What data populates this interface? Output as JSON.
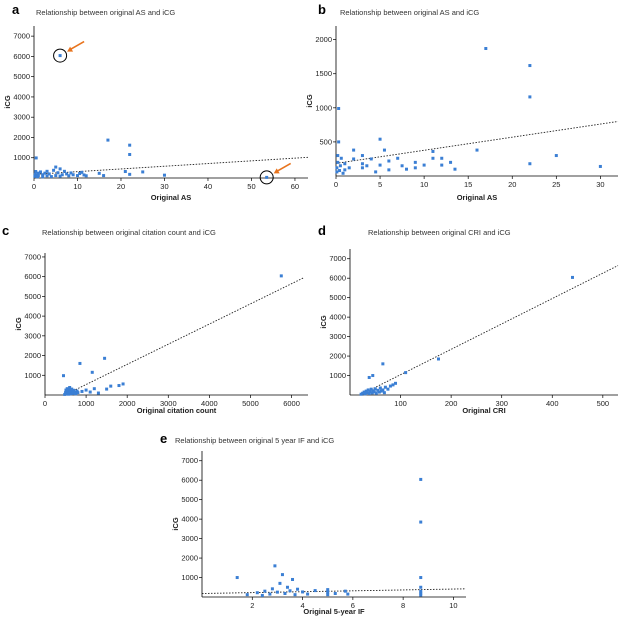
{
  "chart_data": [
    {
      "panel": "a",
      "type": "scatter",
      "title": "Relationship between original AS and iCG",
      "xlabel": "Original AS",
      "ylabel": "iCG",
      "xlim": [
        0,
        63
      ],
      "ylim": [
        0,
        7500
      ],
      "xticks": [
        0,
        10,
        20,
        30,
        40,
        50,
        60
      ],
      "yticks": [
        1000,
        2000,
        3000,
        4000,
        5000,
        6000,
        7000
      ],
      "trendline": [
        [
          0,
          180
        ],
        [
          63,
          1020
        ]
      ],
      "circled_points": [
        [
          6,
          6040
        ],
        [
          53.5,
          30
        ]
      ],
      "points": [
        [
          0.2,
          80
        ],
        [
          0.3,
          180
        ],
        [
          0.4,
          320
        ],
        [
          0.5,
          990
        ],
        [
          0.6,
          150
        ],
        [
          0.8,
          60
        ],
        [
          1,
          240
        ],
        [
          1,
          120
        ],
        [
          1.5,
          300
        ],
        [
          2,
          160
        ],
        [
          2,
          60
        ],
        [
          2.5,
          240
        ],
        [
          3,
          110
        ],
        [
          3,
          330
        ],
        [
          3.5,
          200
        ],
        [
          4,
          70
        ],
        [
          4.5,
          380
        ],
        [
          5,
          120
        ],
        [
          5,
          540
        ],
        [
          5.5,
          260
        ],
        [
          6,
          90
        ],
        [
          6,
          450
        ],
        [
          6,
          6040
        ],
        [
          6.5,
          160
        ],
        [
          7,
          330
        ],
        [
          7.5,
          200
        ],
        [
          8,
          110
        ],
        [
          8.5,
          250
        ],
        [
          9,
          160
        ],
        [
          10,
          120
        ],
        [
          10.5,
          220
        ],
        [
          11,
          280
        ],
        [
          11.5,
          150
        ],
        [
          12,
          110
        ],
        [
          15,
          230
        ],
        [
          16,
          120
        ],
        [
          17,
          1870
        ],
        [
          21,
          320
        ],
        [
          22,
          1620
        ],
        [
          22,
          1160
        ],
        [
          22,
          180
        ],
        [
          25,
          300
        ],
        [
          30,
          140
        ],
        [
          53.5,
          30
        ]
      ]
    },
    {
      "panel": "b",
      "type": "scatter",
      "title": "Relationship between original AS and iCG",
      "xlabel": "Original AS",
      "ylabel": "iCG",
      "xlim": [
        0,
        32
      ],
      "ylim": [
        0,
        2200
      ],
      "xticks": [
        0,
        5,
        10,
        15,
        20,
        25,
        30
      ],
      "yticks": [
        500,
        1000,
        1500,
        2000
      ],
      "trendline": [
        [
          0,
          185
        ],
        [
          32,
          800
        ]
      ],
      "points": [
        [
          0.1,
          60
        ],
        [
          0.1,
          120
        ],
        [
          0.2,
          200
        ],
        [
          0.2,
          300
        ],
        [
          0.3,
          500
        ],
        [
          0.3,
          990
        ],
        [
          0.4,
          80
        ],
        [
          0.5,
          150
        ],
        [
          0.6,
          260
        ],
        [
          0.8,
          40
        ],
        [
          1,
          90
        ],
        [
          1,
          180
        ],
        [
          1.5,
          120
        ],
        [
          2,
          250
        ],
        [
          2,
          380
        ],
        [
          3,
          120
        ],
        [
          3,
          180
        ],
        [
          3,
          300
        ],
        [
          3.5,
          150
        ],
        [
          4,
          250
        ],
        [
          4.5,
          60
        ],
        [
          5,
          540
        ],
        [
          5,
          160
        ],
        [
          5.5,
          380
        ],
        [
          6,
          220
        ],
        [
          6,
          90
        ],
        [
          7,
          260
        ],
        [
          7.5,
          150
        ],
        [
          8,
          100
        ],
        [
          9,
          200
        ],
        [
          9,
          120
        ],
        [
          10,
          160
        ],
        [
          11,
          260
        ],
        [
          11,
          360
        ],
        [
          12,
          160
        ],
        [
          12,
          260
        ],
        [
          13,
          200
        ],
        [
          13.5,
          100
        ],
        [
          16,
          380
        ],
        [
          17,
          1870
        ],
        [
          22,
          1620
        ],
        [
          22,
          1160
        ],
        [
          22,
          180
        ],
        [
          25,
          300
        ],
        [
          30,
          140
        ]
      ]
    },
    {
      "panel": "c",
      "type": "scatter",
      "title": "Relationship between original citation count and iCG",
      "xlabel": "Original citation count",
      "ylabel": "iCG",
      "xlim": [
        0,
        6400
      ],
      "ylim": [
        0,
        7200
      ],
      "xticks": [
        0,
        1000,
        2000,
        3000,
        4000,
        5000,
        6000
      ],
      "yticks": [
        1000,
        2000,
        3000,
        4000,
        5000,
        6000,
        7000
      ],
      "trendline": [
        [
          480,
          0
        ],
        [
          6300,
          5950
        ]
      ],
      "points": [
        [
          480,
          30
        ],
        [
          500,
          120
        ],
        [
          510,
          250
        ],
        [
          520,
          60
        ],
        [
          530,
          180
        ],
        [
          540,
          320
        ],
        [
          550,
          90
        ],
        [
          560,
          200
        ],
        [
          570,
          40
        ],
        [
          580,
          150
        ],
        [
          590,
          280
        ],
        [
          600,
          380
        ],
        [
          610,
          100
        ],
        [
          620,
          220
        ],
        [
          630,
          60
        ],
        [
          640,
          160
        ],
        [
          650,
          300
        ],
        [
          660,
          120
        ],
        [
          680,
          80
        ],
        [
          700,
          240
        ],
        [
          720,
          140
        ],
        [
          750,
          60
        ],
        [
          780,
          200
        ],
        [
          800,
          120
        ],
        [
          850,
          1600
        ],
        [
          900,
          180
        ],
        [
          1000,
          250
        ],
        [
          1100,
          150
        ],
        [
          1150,
          1150
        ],
        [
          1200,
          320
        ],
        [
          1300,
          100
        ],
        [
          1450,
          1860
        ],
        [
          1500,
          300
        ],
        [
          1600,
          450
        ],
        [
          1800,
          480
        ],
        [
          1900,
          560
        ],
        [
          450,
          980
        ],
        [
          5750,
          6040
        ]
      ]
    },
    {
      "panel": "d",
      "type": "scatter",
      "title": "Relationship between original CRI and iCG",
      "xlabel": "Original CRI",
      "ylabel": "iCG",
      "xlim": [
        0,
        530
      ],
      "ylim": [
        0,
        7500
      ],
      "xticks": [
        100,
        200,
        300,
        400,
        500
      ],
      "yticks": [
        1000,
        2000,
        3000,
        4000,
        5000,
        6000,
        7000
      ],
      "trendline": [
        [
          20,
          0
        ],
        [
          530,
          6650
        ]
      ],
      "points": [
        [
          22,
          40
        ],
        [
          25,
          90
        ],
        [
          28,
          150
        ],
        [
          30,
          60
        ],
        [
          32,
          200
        ],
        [
          34,
          120
        ],
        [
          36,
          260
        ],
        [
          38,
          80
        ],
        [
          40,
          180
        ],
        [
          42,
          300
        ],
        [
          44,
          110
        ],
        [
          46,
          220
        ],
        [
          48,
          160
        ],
        [
          50,
          320
        ],
        [
          52,
          90
        ],
        [
          55,
          240
        ],
        [
          58,
          150
        ],
        [
          60,
          360
        ],
        [
          62,
          200
        ],
        [
          65,
          260
        ],
        [
          68,
          120
        ],
        [
          70,
          400
        ],
        [
          75,
          300
        ],
        [
          80,
          460
        ],
        [
          85,
          520
        ],
        [
          90,
          600
        ],
        [
          38,
          900
        ],
        [
          45,
          1000
        ],
        [
          65,
          1600
        ],
        [
          110,
          1150
        ],
        [
          175,
          1850
        ],
        [
          440,
          6040
        ]
      ]
    },
    {
      "panel": "e",
      "type": "scatter",
      "title": "Relationship between original 5 year IF and iCG",
      "xlabel": "Original 5-year IF",
      "ylabel": "iCG",
      "xlim": [
        0,
        10.5
      ],
      "ylim": [
        0,
        7500
      ],
      "xticks": [
        2,
        4,
        6,
        8,
        10
      ],
      "yticks": [
        1000,
        2000,
        3000,
        4000,
        5000,
        6000,
        7000
      ],
      "trendline": [
        [
          0,
          180
        ],
        [
          10.5,
          420
        ]
      ],
      "points": [
        [
          1.4,
          1000
        ],
        [
          1.8,
          120
        ],
        [
          2.2,
          220
        ],
        [
          2.4,
          80
        ],
        [
          2.5,
          300
        ],
        [
          2.7,
          150
        ],
        [
          2.8,
          420
        ],
        [
          2.9,
          1600
        ],
        [
          3.0,
          250
        ],
        [
          3.1,
          700
        ],
        [
          3.2,
          1150
        ],
        [
          3.3,
          180
        ],
        [
          3.4,
          500
        ],
        [
          3.5,
          320
        ],
        [
          3.6,
          900
        ],
        [
          3.7,
          120
        ],
        [
          3.8,
          400
        ],
        [
          4.0,
          260
        ],
        [
          4.2,
          150
        ],
        [
          4.5,
          330
        ],
        [
          5.0,
          120
        ],
        [
          5.0,
          250
        ],
        [
          5.0,
          380
        ],
        [
          5.3,
          180
        ],
        [
          5.7,
          300
        ],
        [
          5.8,
          150
        ],
        [
          8.7,
          6040
        ],
        [
          8.7,
          3850
        ],
        [
          8.7,
          1000
        ],
        [
          8.7,
          500
        ],
        [
          8.7,
          300
        ],
        [
          8.7,
          200
        ],
        [
          8.7,
          100
        ]
      ]
    }
  ]
}
